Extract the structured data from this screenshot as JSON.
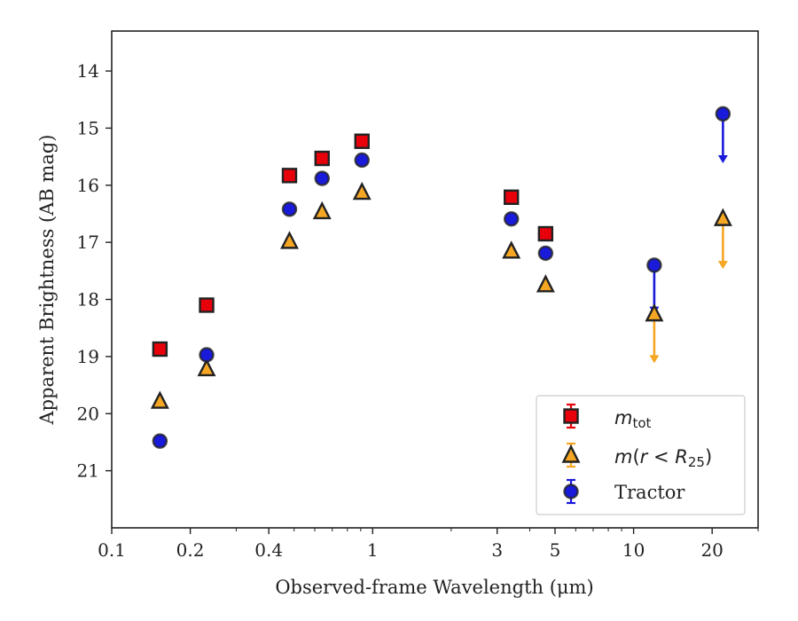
{
  "chart_data": {
    "type": "scatter",
    "xlabel": "Observed-frame Wavelength (μm)",
    "ylabel": "Apparent Brightness (AB mag)",
    "xscale": "log",
    "xlim": [
      0.1,
      30
    ],
    "ylim": [
      22.0,
      13.3
    ],
    "y_inverted": true,
    "xticks": [
      {
        "value": 0.1,
        "label": "0.1"
      },
      {
        "value": 0.2,
        "label": "0.2"
      },
      {
        "value": 0.4,
        "label": "0.4"
      },
      {
        "value": 1,
        "label": "1"
      },
      {
        "value": 3,
        "label": "3"
      },
      {
        "value": 5,
        "label": "5"
      },
      {
        "value": 10,
        "label": "10"
      },
      {
        "value": 20,
        "label": "20"
      }
    ],
    "yticks": [
      14,
      15,
      16,
      17,
      18,
      19,
      20,
      21
    ],
    "legend_position": "lower-right",
    "series": [
      {
        "name": "m_tot",
        "marker": "square",
        "color": "#e8000b",
        "points": [
          {
            "x": 0.153,
            "y": 18.87
          },
          {
            "x": 0.231,
            "y": 18.1
          },
          {
            "x": 0.48,
            "y": 15.83
          },
          {
            "x": 0.64,
            "y": 15.53
          },
          {
            "x": 0.91,
            "y": 15.23
          },
          {
            "x": 3.4,
            "y": 16.21
          },
          {
            "x": 4.6,
            "y": 16.85
          }
        ]
      },
      {
        "name": "m(r < R25)",
        "marker": "triangle",
        "color": "#f5a623",
        "points": [
          {
            "x": 0.153,
            "y": 19.78
          },
          {
            "x": 0.231,
            "y": 19.21
          },
          {
            "x": 0.48,
            "y": 16.98
          },
          {
            "x": 0.64,
            "y": 16.46
          },
          {
            "x": 0.91,
            "y": 16.12
          },
          {
            "x": 3.4,
            "y": 17.15
          },
          {
            "x": 4.6,
            "y": 17.74
          },
          {
            "x": 12.0,
            "y": 18.25,
            "upper_limit": true,
            "arrow_to": 19.1
          },
          {
            "x": 22.0,
            "y": 16.58,
            "upper_limit": true,
            "arrow_to": 17.45
          }
        ]
      },
      {
        "name": "Tractor",
        "marker": "circle",
        "color": "#1a1adb",
        "points": [
          {
            "x": 0.153,
            "y": 20.48
          },
          {
            "x": 0.231,
            "y": 18.97
          },
          {
            "x": 0.48,
            "y": 16.42
          },
          {
            "x": 0.64,
            "y": 15.88
          },
          {
            "x": 0.91,
            "y": 15.56
          },
          {
            "x": 3.4,
            "y": 16.59
          },
          {
            "x": 4.6,
            "y": 17.19
          },
          {
            "x": 12.0,
            "y": 17.4,
            "upper_limit": true,
            "arrow_to": 18.25
          },
          {
            "x": 22.0,
            "y": 14.75,
            "upper_limit": true,
            "arrow_to": 15.6
          }
        ]
      }
    ]
  }
}
